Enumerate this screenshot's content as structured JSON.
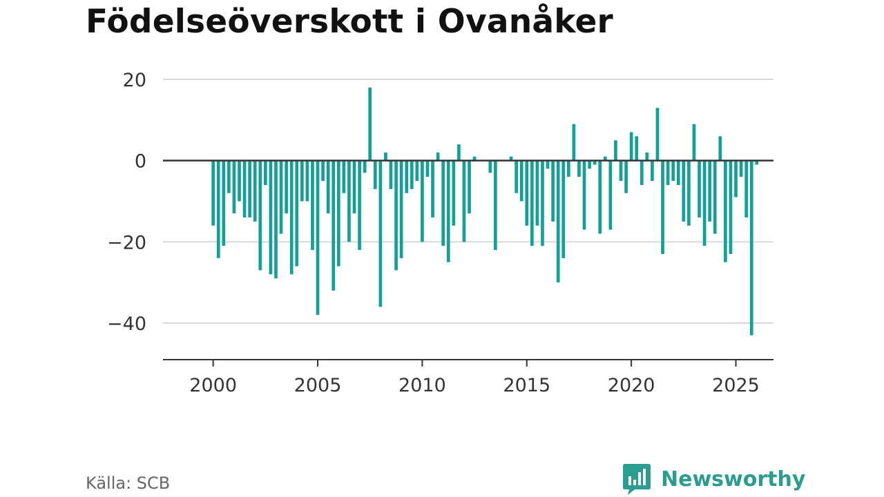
{
  "title": "Födelseöverskott i Ovanåker",
  "source": "Källa: SCB",
  "brand": "Newsworthy",
  "colors": {
    "bar": "#14a098",
    "zero_line": "#333333",
    "grid": "#d9d9d9",
    "axis": "#333333",
    "brand": "#2a9d8f"
  },
  "chart_data": {
    "type": "bar",
    "title": "Födelseöverskott i Ovanåker",
    "xlabel": "",
    "ylabel": "",
    "grid": true,
    "ylim": [
      -49,
      20
    ],
    "xlim": [
      1997.6,
      2026.8
    ],
    "yticks": [
      20,
      0,
      -20,
      -40
    ],
    "ytick_labels": [
      "20",
      "0",
      "−20",
      "−40"
    ],
    "xticks": [
      2000,
      2005,
      2010,
      2015,
      2020,
      2025
    ],
    "xtick_labels": [
      "2000",
      "2005",
      "2010",
      "2015",
      "2020",
      "2025"
    ],
    "frequency": "quarterly",
    "start": "2000 Q1",
    "values": [
      -16,
      -24,
      -21,
      -8,
      -13,
      -10,
      -14,
      -14,
      -15,
      -27,
      -6,
      -28,
      -29,
      -18,
      -13,
      -28,
      -26,
      -10,
      -10,
      -22,
      -38,
      -5,
      -13,
      -32,
      -26,
      -8,
      -20,
      -13,
      -22,
      -3,
      18,
      -7,
      -36,
      2,
      -7,
      -27,
      -24,
      -8,
      -7,
      -5,
      -20,
      -4,
      -14,
      2,
      -21,
      -25,
      -16,
      4,
      -20,
      -13,
      1,
      0,
      0,
      -3,
      -22,
      0,
      0,
      1,
      -8,
      -10,
      -16,
      -21,
      -16,
      -21,
      -2,
      -15,
      -30,
      -24,
      -4,
      9,
      -4,
      -17,
      -2,
      -1,
      -18,
      1,
      -17,
      5,
      -5,
      -8,
      7,
      6,
      -6,
      2,
      -5,
      13,
      -23,
      -6,
      -5,
      -6,
      -15,
      -16,
      9,
      -14,
      -21,
      -15,
      -18,
      6,
      -25,
      -23,
      -9,
      -4,
      -14,
      -43,
      -1
    ]
  }
}
